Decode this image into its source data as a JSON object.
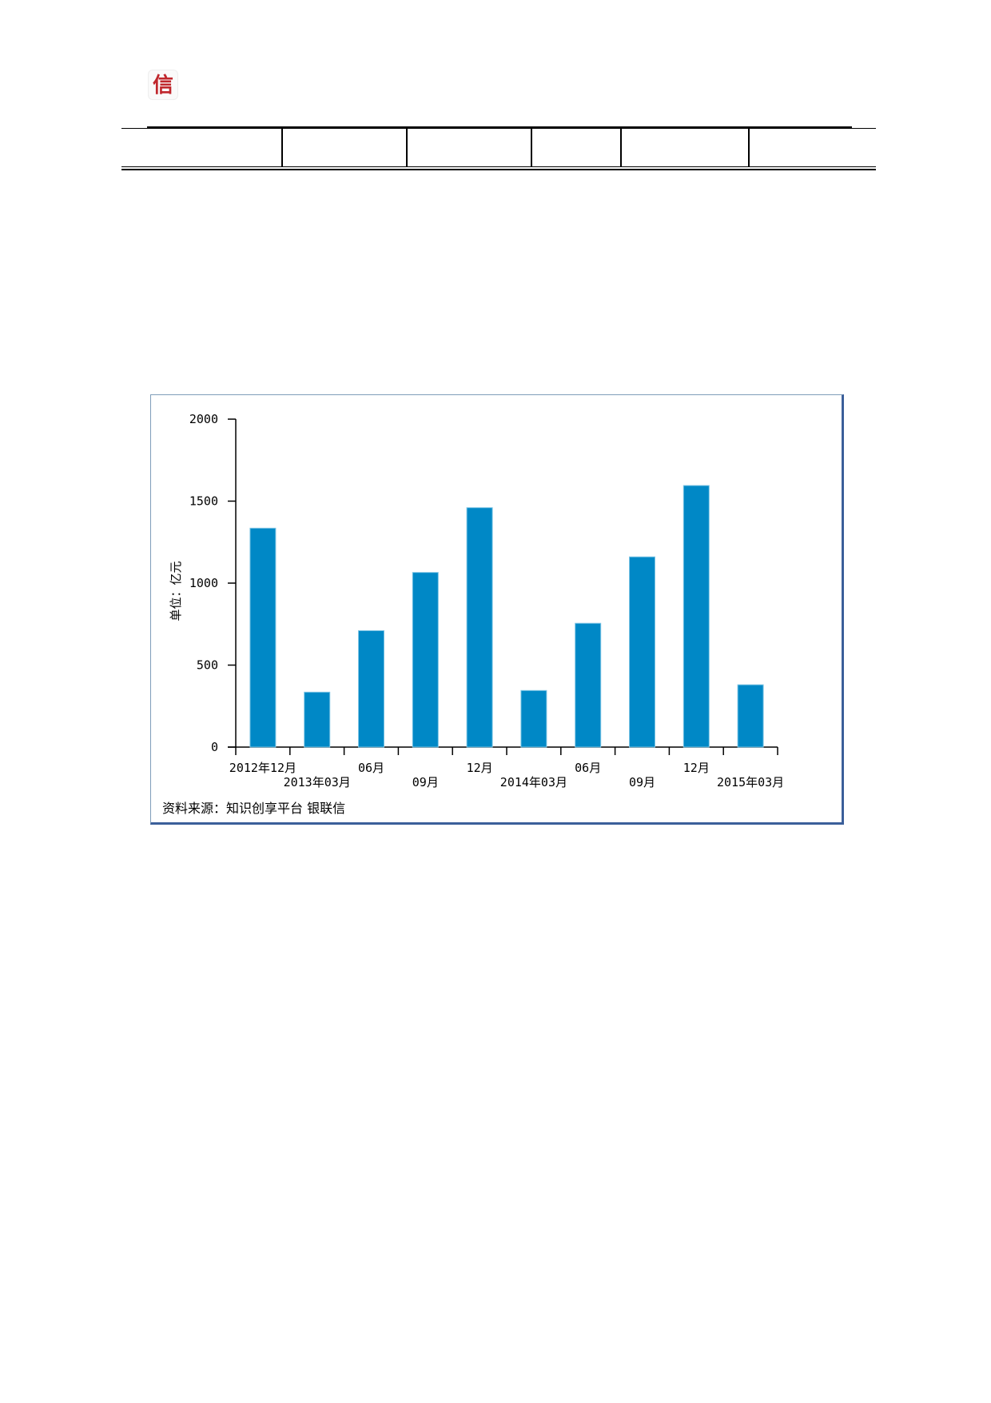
{
  "header": {
    "logo_char": "信",
    "logo_color": "#c0272d"
  },
  "chart_data": {
    "type": "bar",
    "title": "",
    "xlabel": "",
    "ylabel": "单位：亿元",
    "ylim": [
      0,
      2000
    ],
    "yticks": [
      0,
      500,
      1000,
      1500,
      2000
    ],
    "categories": [
      "2012年12月",
      "2013年03月",
      "06月",
      "09月",
      "12月",
      "2014年03月",
      "06月",
      "09月",
      "12月",
      "2015年03月"
    ],
    "values": [
      1335,
      335,
      710,
      1065,
      1460,
      345,
      755,
      1160,
      1595,
      380
    ],
    "bar_color": "#0088c6",
    "grid": false,
    "legend": "none",
    "source": "资料来源：知识创享平台 银联信"
  }
}
